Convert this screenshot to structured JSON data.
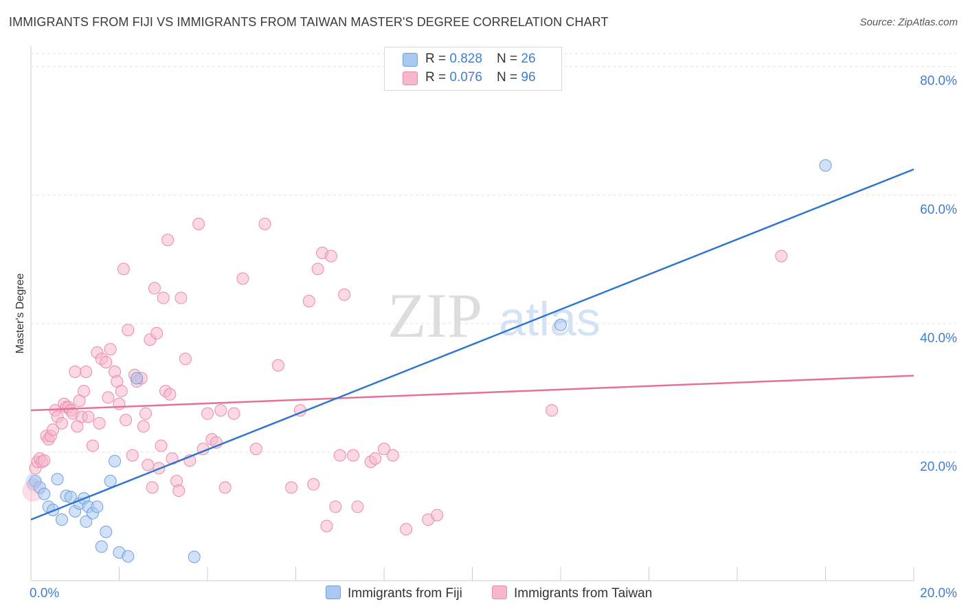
{
  "header": {
    "title": "IMMIGRANTS FROM FIJI VS IMMIGRANTS FROM TAIWAN MASTER'S DEGREE CORRELATION CHART",
    "source": "Source: ZipAtlas.com"
  },
  "watermark": {
    "zip": "ZIP",
    "atlas": "atlas"
  },
  "colors": {
    "fiji_fill": "#aac9f2",
    "fiji_stroke": "#6f9fdc",
    "fiji_line": "#2f74cf",
    "taiwan_fill": "#f7b8cc",
    "taiwan_stroke": "#e98aa9",
    "taiwan_line": "#e5709a",
    "tick_label": "#3f7dd1",
    "grid": "#e2e2e2"
  },
  "legend": {
    "rows": [
      {
        "r_label": "R = ",
        "r_value": "0.828",
        "n_label": "N = ",
        "n_value": "26"
      },
      {
        "r_label": "R = ",
        "r_value": "0.076",
        "n_label": "N = ",
        "n_value": "96"
      }
    ]
  },
  "chart_data": {
    "type": "scatter",
    "title": "IMMIGRANTS FROM FIJI VS IMMIGRANTS FROM TAIWAN MASTER'S DEGREE CORRELATION CHART",
    "xlabel": "",
    "ylabel": "Master's Degree",
    "xlim": [
      0,
      20
    ],
    "ylim": [
      0,
      82
    ],
    "x_tick_labels": [
      "0.0%",
      "20.0%"
    ],
    "y_ticks": [
      20,
      40,
      60,
      80
    ],
    "y_tick_labels": [
      "20.0%",
      "40.0%",
      "60.0%",
      "80.0%"
    ],
    "grid": true,
    "legend_position": "top-center",
    "series": [
      {
        "name": "Immigrants from Fiji",
        "r": 0.828,
        "n": 26,
        "trend": {
          "x": [
            0,
            20
          ],
          "y": [
            9.5,
            64
          ]
        },
        "points": [
          [
            0.1,
            15.5
          ],
          [
            0.2,
            14.5
          ],
          [
            0.3,
            13.5
          ],
          [
            0.4,
            11.5
          ],
          [
            0.5,
            11.0
          ],
          [
            0.6,
            15.8
          ],
          [
            0.7,
            9.5
          ],
          [
            0.8,
            13.2
          ],
          [
            0.9,
            13.0
          ],
          [
            1.0,
            10.8
          ],
          [
            1.1,
            12.0
          ],
          [
            1.2,
            12.8
          ],
          [
            1.25,
            9.2
          ],
          [
            1.3,
            11.5
          ],
          [
            1.4,
            10.5
          ],
          [
            1.5,
            11.5
          ],
          [
            1.6,
            5.3
          ],
          [
            1.7,
            7.6
          ],
          [
            1.8,
            15.5
          ],
          [
            1.9,
            18.6
          ],
          [
            2.0,
            4.4
          ],
          [
            2.2,
            3.8
          ],
          [
            2.4,
            31.5
          ],
          [
            3.7,
            3.7
          ],
          [
            12.0,
            39.8
          ],
          [
            18.0,
            64.6
          ]
        ]
      },
      {
        "name": "Immigrants from Taiwan",
        "r": 0.076,
        "n": 96,
        "trend": {
          "x": [
            0,
            20
          ],
          "y": [
            26.5,
            31.9
          ]
        },
        "points": [
          [
            0.05,
            15.0
          ],
          [
            0.1,
            17.5
          ],
          [
            0.15,
            18.5
          ],
          [
            0.2,
            19.0
          ],
          [
            0.25,
            18.5
          ],
          [
            0.3,
            18.7
          ],
          [
            0.35,
            22.5
          ],
          [
            0.4,
            22.0
          ],
          [
            0.45,
            22.5
          ],
          [
            0.5,
            23.5
          ],
          [
            0.55,
            26.5
          ],
          [
            0.6,
            25.5
          ],
          [
            0.7,
            24.5
          ],
          [
            0.75,
            27.5
          ],
          [
            0.8,
            27.0
          ],
          [
            0.85,
            27.0
          ],
          [
            0.9,
            26.5
          ],
          [
            0.95,
            26.0
          ],
          [
            1.0,
            32.5
          ],
          [
            1.05,
            24.0
          ],
          [
            1.1,
            28.0
          ],
          [
            1.15,
            25.5
          ],
          [
            1.2,
            29.5
          ],
          [
            1.25,
            32.5
          ],
          [
            1.3,
            25.5
          ],
          [
            1.4,
            21.0
          ],
          [
            1.5,
            35.5
          ],
          [
            1.55,
            24.5
          ],
          [
            1.6,
            34.5
          ],
          [
            1.7,
            34.0
          ],
          [
            1.75,
            28.5
          ],
          [
            1.8,
            36.0
          ],
          [
            1.9,
            32.5
          ],
          [
            1.95,
            31.0
          ],
          [
            2.0,
            27.5
          ],
          [
            2.05,
            29.5
          ],
          [
            2.1,
            48.5
          ],
          [
            2.15,
            25.0
          ],
          [
            2.2,
            39.0
          ],
          [
            2.3,
            19.5
          ],
          [
            2.35,
            32.0
          ],
          [
            2.4,
            31.0
          ],
          [
            2.5,
            31.5
          ],
          [
            2.55,
            24.0
          ],
          [
            2.6,
            26.0
          ],
          [
            2.65,
            18.0
          ],
          [
            2.7,
            37.5
          ],
          [
            2.75,
            14.5
          ],
          [
            2.8,
            45.5
          ],
          [
            2.85,
            38.5
          ],
          [
            2.9,
            17.5
          ],
          [
            2.95,
            21.0
          ],
          [
            3.0,
            44.0
          ],
          [
            3.05,
            29.5
          ],
          [
            3.1,
            53.0
          ],
          [
            3.15,
            29.0
          ],
          [
            3.2,
            19.0
          ],
          [
            3.3,
            15.5
          ],
          [
            3.35,
            14.0
          ],
          [
            3.4,
            44.0
          ],
          [
            3.5,
            34.5
          ],
          [
            3.6,
            18.7
          ],
          [
            3.8,
            55.5
          ],
          [
            3.9,
            20.5
          ],
          [
            4.0,
            26.0
          ],
          [
            4.1,
            22.0
          ],
          [
            4.2,
            21.5
          ],
          [
            4.3,
            26.5
          ],
          [
            4.4,
            14.5
          ],
          [
            4.6,
            26.0
          ],
          [
            4.8,
            47.0
          ],
          [
            5.1,
            20.5
          ],
          [
            5.3,
            55.5
          ],
          [
            5.6,
            33.5
          ],
          [
            5.9,
            14.5
          ],
          [
            6.1,
            26.5
          ],
          [
            6.3,
            43.5
          ],
          [
            6.4,
            15.0
          ],
          [
            6.5,
            48.5
          ],
          [
            6.6,
            51.0
          ],
          [
            6.7,
            8.5
          ],
          [
            6.8,
            50.5
          ],
          [
            6.9,
            11.5
          ],
          [
            7.0,
            19.5
          ],
          [
            7.1,
            44.5
          ],
          [
            7.3,
            19.5
          ],
          [
            7.4,
            11.5
          ],
          [
            7.7,
            18.5
          ],
          [
            7.8,
            19.0
          ],
          [
            8.0,
            20.5
          ],
          [
            8.2,
            19.5
          ],
          [
            8.5,
            8.0
          ],
          [
            9.0,
            9.5
          ],
          [
            9.2,
            10.2
          ],
          [
            11.8,
            26.5
          ],
          [
            17.0,
            50.5
          ]
        ]
      }
    ]
  }
}
